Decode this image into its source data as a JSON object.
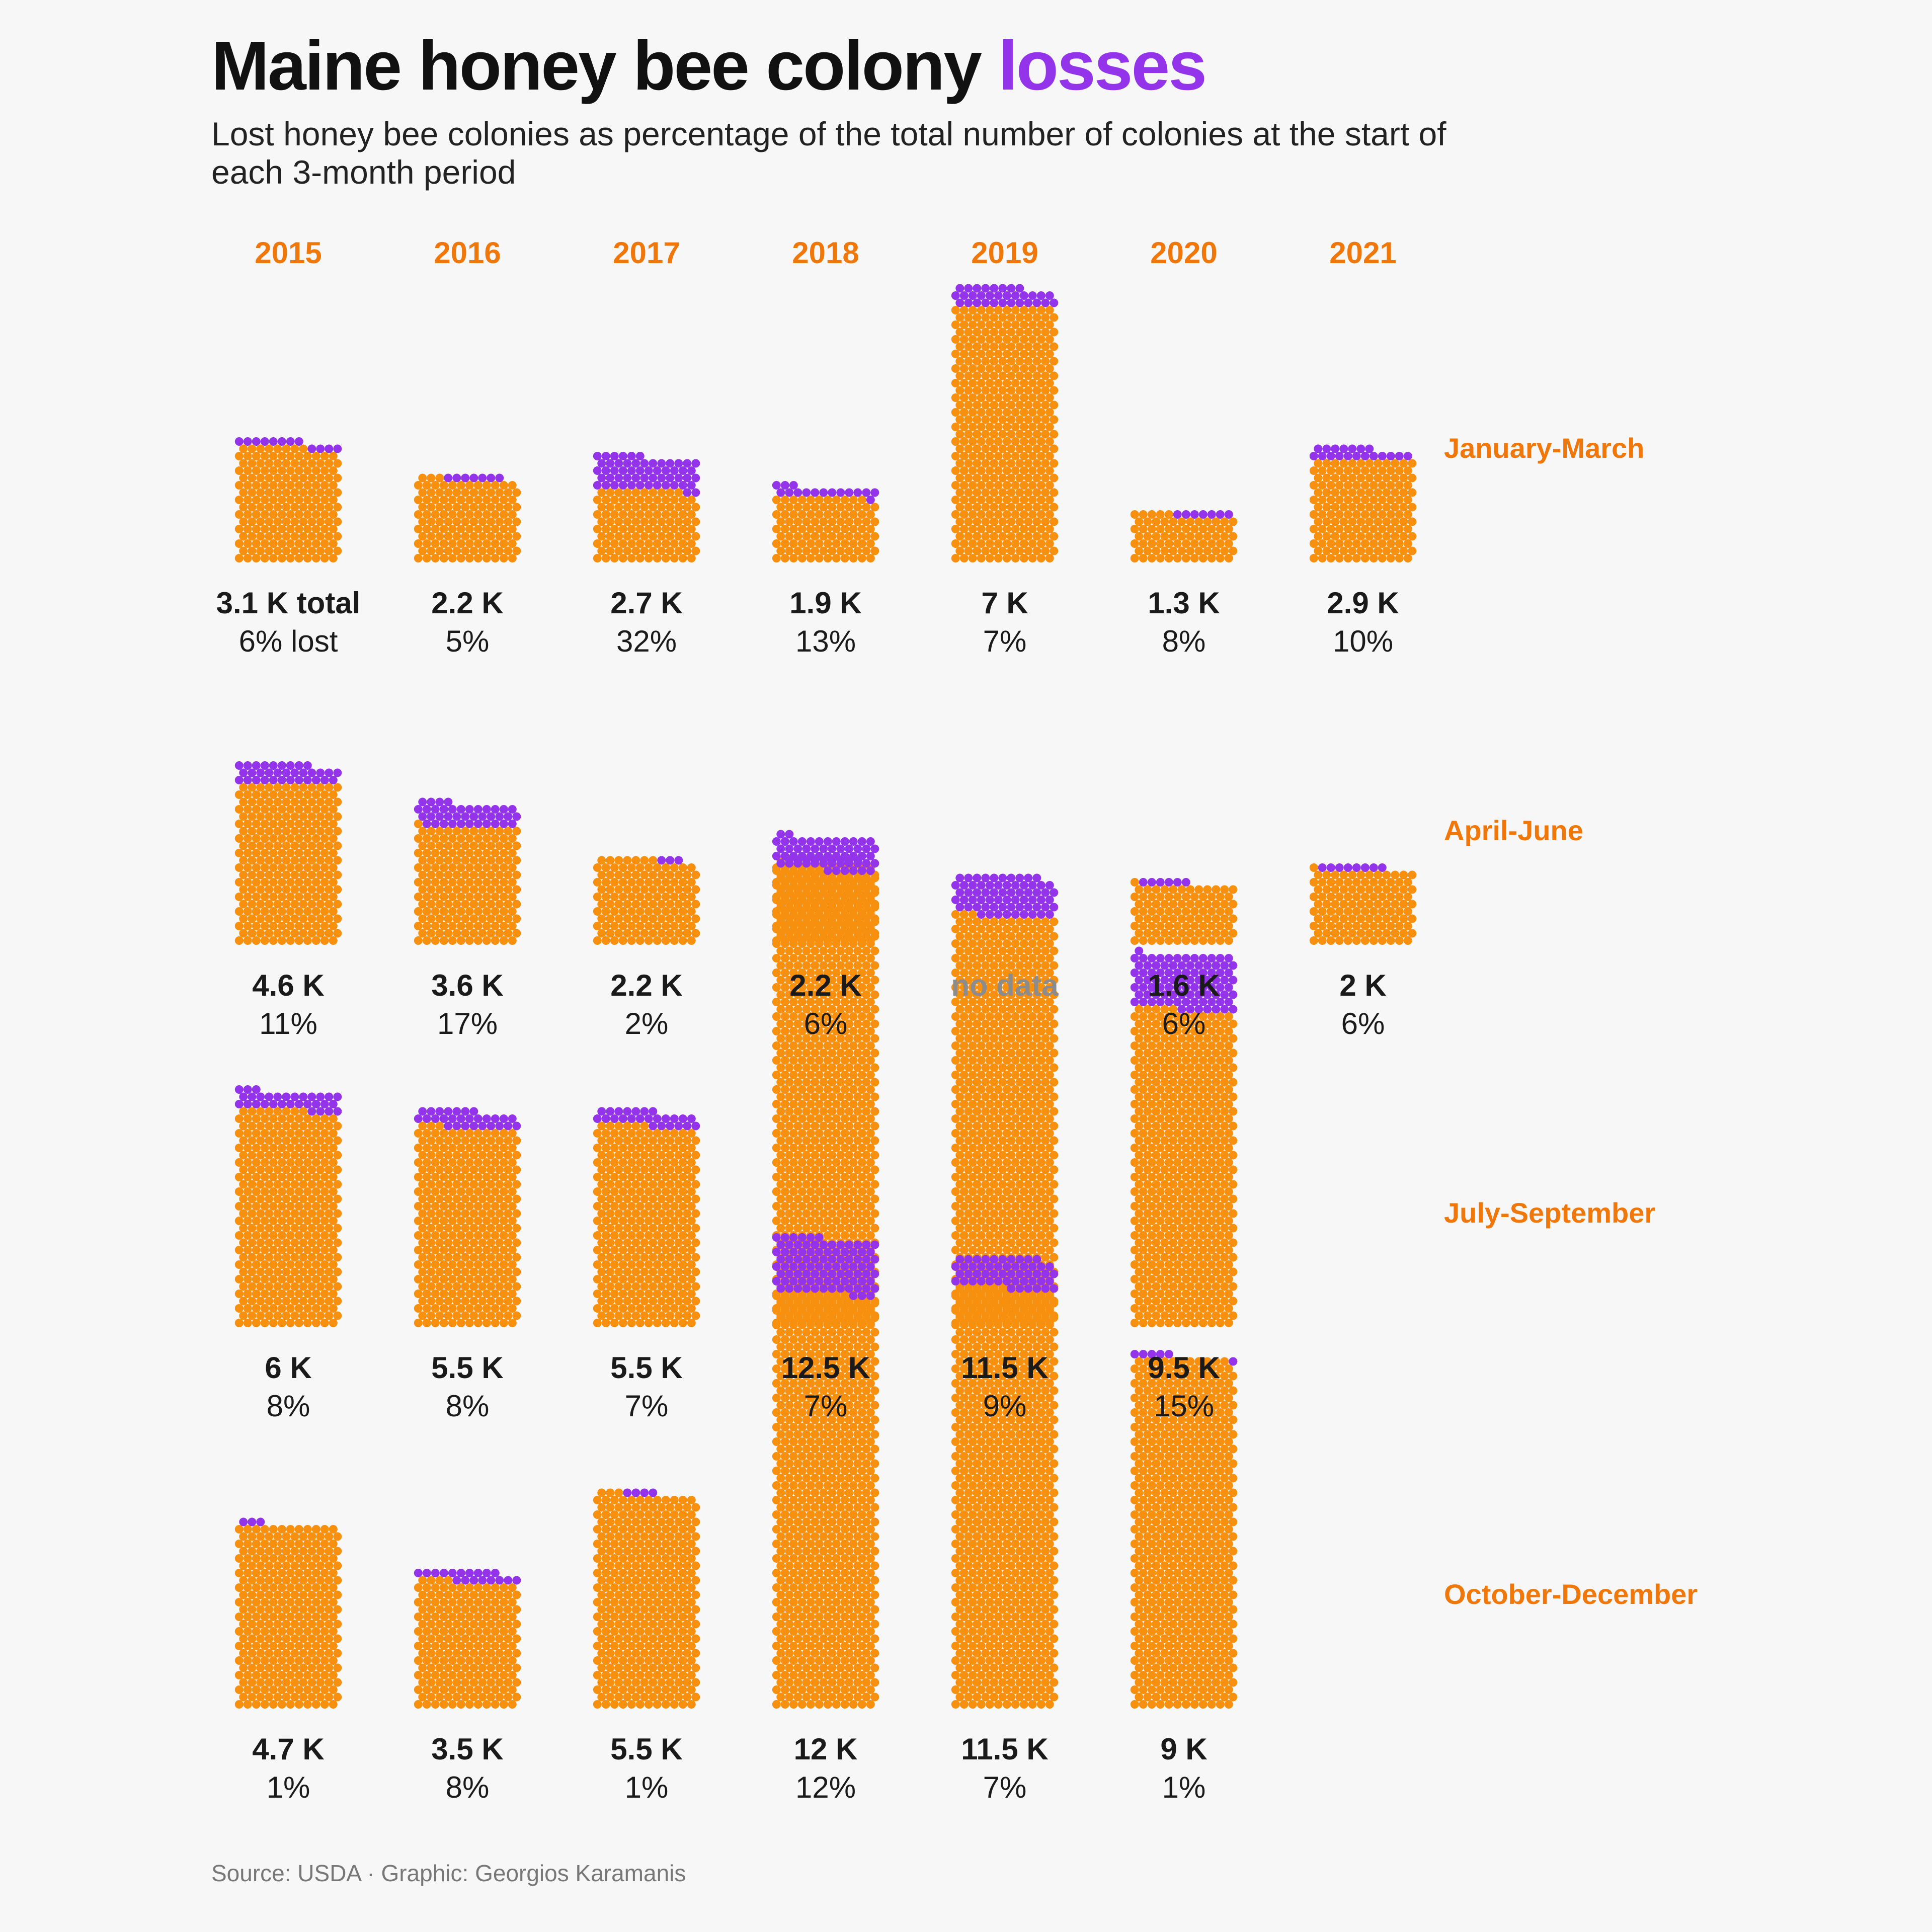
{
  "title": {
    "main": "Maine honey bee colony ",
    "accent": "losses"
  },
  "subtitle": "Lost honey bee colonies as percentage of the total number of colonies at the start of each 3-month period",
  "source": "Source: USDA · Graphic: Georgios Karamanis",
  "colors": {
    "colonies": "#f7900e",
    "lost": "#9333ea",
    "labels": "#f0780a",
    "no_data": "#8c8c8c"
  },
  "chart_data": {
    "type": "waffle",
    "years": [
      "2015",
      "2016",
      "2017",
      "2018",
      "2019",
      "2020",
      "2021"
    ],
    "periods": [
      "January-March",
      "April-June",
      "July-September",
      "October-December"
    ],
    "units": {
      "total": "K colonies",
      "lost": "% lost"
    },
    "total_suffix": " K",
    "first_total_suffix": " total",
    "first_pct_suffix": " lost",
    "no_data_label": "no data",
    "rows": [
      {
        "period": "January-March",
        "cells": [
          {
            "year": "2015",
            "total": 3.1,
            "lost": 6
          },
          {
            "year": "2016",
            "total": 2.2,
            "lost": 5
          },
          {
            "year": "2017",
            "total": 2.7,
            "lost": 32
          },
          {
            "year": "2018",
            "total": 1.9,
            "lost": 13
          },
          {
            "year": "2019",
            "total": 7,
            "lost": 7
          },
          {
            "year": "2020",
            "total": 1.3,
            "lost": 8
          },
          {
            "year": "2021",
            "total": 2.9,
            "lost": 10
          }
        ]
      },
      {
        "period": "April-June",
        "cells": [
          {
            "year": "2015",
            "total": 4.6,
            "lost": 11
          },
          {
            "year": "2016",
            "total": 3.6,
            "lost": 17
          },
          {
            "year": "2017",
            "total": 2.2,
            "lost": 2
          },
          {
            "year": "2018",
            "total": 2.2,
            "lost": 6
          },
          {
            "year": "2019",
            "total": null,
            "lost": null
          },
          {
            "year": "2020",
            "total": 1.6,
            "lost": 6
          },
          {
            "year": "2021",
            "total": 2,
            "lost": 6
          }
        ]
      },
      {
        "period": "July-September",
        "cells": [
          {
            "year": "2015",
            "total": 6,
            "lost": 8
          },
          {
            "year": "2016",
            "total": 5.5,
            "lost": 8
          },
          {
            "year": "2017",
            "total": 5.5,
            "lost": 7
          },
          {
            "year": "2018",
            "total": 12.5,
            "lost": 7
          },
          {
            "year": "2019",
            "total": 11.5,
            "lost": 9
          },
          {
            "year": "2020",
            "total": 9.5,
            "lost": 15
          }
        ]
      },
      {
        "period": "October-December",
        "cells": [
          {
            "year": "2015",
            "total": 4.7,
            "lost": 1
          },
          {
            "year": "2016",
            "total": 3.5,
            "lost": 8
          },
          {
            "year": "2017",
            "total": 5.5,
            "lost": 1
          },
          {
            "year": "2018",
            "total": 12,
            "lost": 12
          },
          {
            "year": "2019",
            "total": 11.5,
            "lost": 7
          },
          {
            "year": "2020",
            "total": 9,
            "lost": 1
          }
        ]
      }
    ]
  }
}
